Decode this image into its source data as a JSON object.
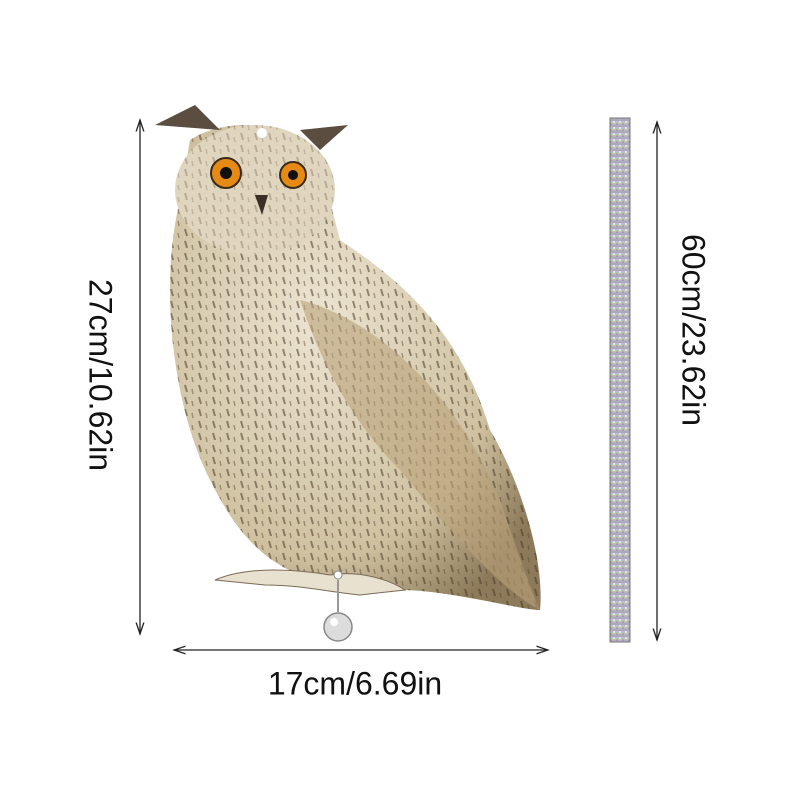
{
  "dimensions": {
    "owl_height": "27cm/10.62in",
    "owl_width": "17cm/6.69in",
    "strip_length": "60cm/23.62in"
  },
  "colors": {
    "owl_body": "#d8cdb4",
    "owl_eye": "#e58a14",
    "arrow": "#222222"
  }
}
